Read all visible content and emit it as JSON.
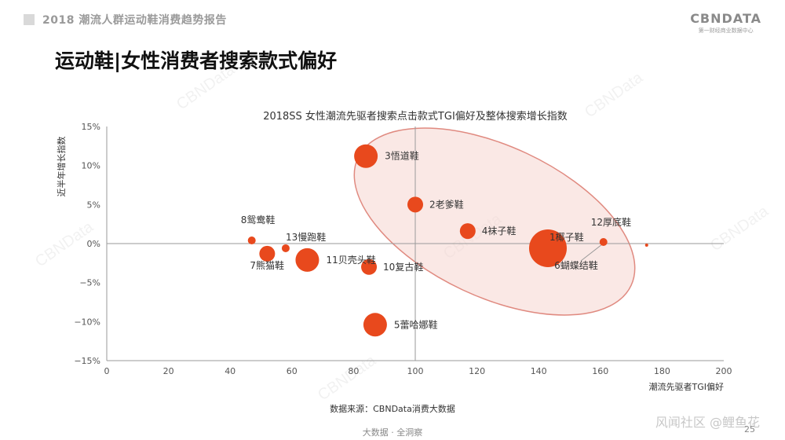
{
  "header": {
    "report_title": "2018 潮流人群运动鞋消费趋势报告"
  },
  "logo": {
    "main": "CBNDATA",
    "sub": "第一财经商业数据中心"
  },
  "page": {
    "title": "运动鞋|女性消费者搜索款式偏好"
  },
  "watermark_text": "CBNData",
  "colors": {
    "bubble": "#e8491d",
    "ellipse_fill": "#f6d6d0",
    "ellipse_stroke": "#e08a80"
  },
  "chart_data": {
    "type": "scatter",
    "title": "2018SS 女性潮流先驱者搜索点击款式TGI偏好及整体搜索增长指数",
    "xlabel": "潮流先驱者TGI偏好",
    "ylabel": "近半年增长指数",
    "xlim": [
      0,
      200
    ],
    "ylim": [
      -15,
      15
    ],
    "x_ticks": [
      0,
      20,
      40,
      60,
      80,
      100,
      120,
      140,
      160,
      180,
      200
    ],
    "y_ticks": [
      -15,
      -10,
      -5,
      0,
      5,
      10,
      15
    ],
    "y_tick_labels": [
      "−15%",
      "−10%",
      "−5%",
      "0%",
      "5%",
      "10%",
      "15%"
    ],
    "grid": "cross lines at x=100 and y=0%",
    "points": [
      {
        "label": "1椰子鞋",
        "x": 143,
        "y": -0.6,
        "size": "largest"
      },
      {
        "label": "2老爹鞋",
        "x": 100,
        "y": 5.0,
        "size": "small"
      },
      {
        "label": "3悟道鞋",
        "x": 84,
        "y": 11.2,
        "size": "medium"
      },
      {
        "label": "4袜子鞋",
        "x": 117,
        "y": 1.6,
        "size": "small"
      },
      {
        "label": "5蕾哈娜鞋",
        "x": 87,
        "y": -10.4,
        "size": "medium"
      },
      {
        "label": "6蝴蝶结鞋",
        "x": 175,
        "y": -0.2,
        "size": "tiny"
      },
      {
        "label": "7熊猫鞋",
        "x": 52,
        "y": -1.3,
        "size": "small"
      },
      {
        "label": "8鸳鸯鞋",
        "x": 47,
        "y": 0.4,
        "size": "tiny"
      },
      {
        "label": "10复古鞋",
        "x": 85,
        "y": -3.0,
        "size": "small"
      },
      {
        "label": "11贝壳头鞋",
        "x": 65,
        "y": -2.1,
        "size": "medium"
      },
      {
        "label": "12厚底鞋",
        "x": 161,
        "y": 0.2,
        "size": "tiny"
      },
      {
        "label": "13慢跑鞋",
        "x": 58,
        "y": -0.6,
        "size": "tiny"
      }
    ],
    "highlight": "ellipse grouping points 1, 2, 3, 4, 6, 12"
  },
  "source": "数据来源：CBNData消费大数据",
  "footer": {
    "center": "大数据 · 全洞察",
    "page_number": "25",
    "watermark": "风闻社区 @鲤鱼花"
  }
}
